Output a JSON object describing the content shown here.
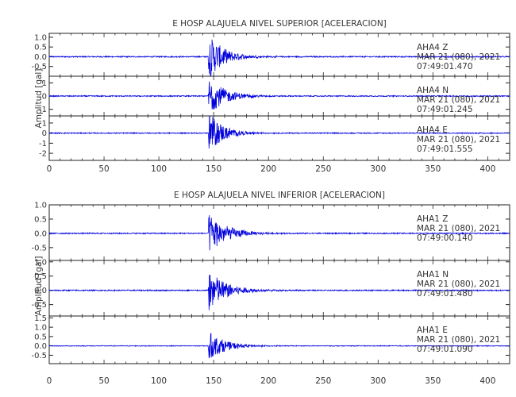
{
  "chart_data": [
    {
      "type": "line",
      "title": "E HOSP ALAJUELA NIVEL SUPERIOR [ACELERACION]",
      "ylabel": "Amplitud [gal]",
      "xlim": [
        0,
        420
      ],
      "x_ticks": [
        "0",
        "50",
        "100",
        "150",
        "200",
        "250",
        "300",
        "350",
        "400"
      ],
      "color": "#0000dd",
      "panels": [
        {
          "station": "AHA4",
          "component": "Z",
          "date": "MAR 21 (080), 2021",
          "time": "07:49:01.470",
          "ylim": [
            -1.0,
            1.2
          ],
          "y_ticks": [
            "1.0",
            "0.5",
            "0.0",
            "-0.5"
          ],
          "event_onset_s": 145,
          "noise_amplitude": 0.03,
          "peak_amplitude": 1.2,
          "decay_s": 14
        },
        {
          "station": "AHA4",
          "component": "N",
          "date": "MAR 21 (080), 2021",
          "time": "07:49:01.245",
          "ylim": [
            -1.5,
            1.5
          ],
          "y_ticks": [
            "1",
            "0",
            "-1"
          ],
          "event_onset_s": 145,
          "noise_amplitude": 0.04,
          "peak_amplitude": 1.5,
          "decay_s": 15
        },
        {
          "station": "AHA4",
          "component": "E",
          "date": "MAR 21 (080), 2021",
          "time": "07:49:01.555",
          "ylim": [
            -2.7,
            1.7
          ],
          "y_ticks": [
            "1",
            "0",
            "-1",
            "-2"
          ],
          "event_onset_s": 145,
          "noise_amplitude": 0.05,
          "peak_amplitude": 2.2,
          "decay_s": 13
        }
      ]
    },
    {
      "type": "line",
      "title": "E HOSP ALAJUELA NIVEL INFERIOR [ACELERACION]",
      "ylabel": "Amplitud [gal]",
      "xlim": [
        0,
        420
      ],
      "x_ticks": [
        "0",
        "50",
        "100",
        "150",
        "200",
        "250",
        "300",
        "350",
        "400"
      ],
      "color": "#0000dd",
      "panels": [
        {
          "station": "AHA1",
          "component": "Z",
          "date": "MAR 21 (080), 2021",
          "time": "07:49:00.140",
          "ylim": [
            -0.95,
            1.0
          ],
          "y_ticks": [
            "1.0",
            "0.5",
            "0.0",
            "-0.5"
          ],
          "event_onset_s": 145,
          "noise_amplitude": 0.02,
          "peak_amplitude": 0.75,
          "decay_s": 16
        },
        {
          "station": "AHA1",
          "component": "N",
          "date": "MAR 21 (080), 2021",
          "time": "07:49:01.480",
          "ylim": [
            -0.9,
            1.05
          ],
          "y_ticks": [
            "1.0",
            "0.5",
            "0.0",
            "-0.5"
          ],
          "event_onset_s": 145,
          "noise_amplitude": 0.02,
          "peak_amplitude": 0.8,
          "decay_s": 16
        },
        {
          "station": "AHA1",
          "component": "E",
          "date": "MAR 21 (080), 2021",
          "time": "07:49:01.090",
          "ylim": [
            -0.95,
            1.6
          ],
          "y_ticks": [
            "1.5",
            "1.0",
            "0.5",
            "0.0",
            "-0.5"
          ],
          "event_onset_s": 145,
          "noise_amplitude": 0.02,
          "peak_amplitude": 0.8,
          "decay_s": 15
        }
      ]
    }
  ]
}
